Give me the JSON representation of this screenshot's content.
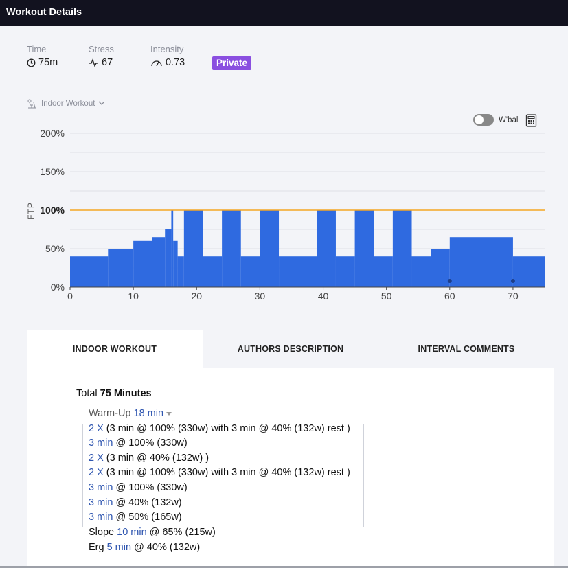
{
  "header": {
    "title": "Workout Details"
  },
  "metrics": {
    "time": {
      "label": "Time",
      "value": "75m"
    },
    "stress": {
      "label": "Stress",
      "value": "67"
    },
    "intensity": {
      "label": "Intensity",
      "value": "0.73"
    },
    "badge": "Private"
  },
  "workout_type": "Indoor Workout",
  "wbal_label": "W'bal",
  "chart_data": {
    "type": "area",
    "ylabel": "FTP",
    "xlim": [
      0,
      75
    ],
    "ylim": [
      0,
      200
    ],
    "x_ticks": [
      0,
      10,
      20,
      30,
      40,
      50,
      60,
      70
    ],
    "x_tick_labels": [
      "0",
      "10",
      "20",
      "30",
      "40",
      "50",
      "60",
      "70"
    ],
    "y_ticks": [
      0,
      50,
      100,
      150,
      200
    ],
    "y_tick_labels": [
      "0%",
      "50%",
      "100%",
      "150%",
      "200%"
    ],
    "reference_line": {
      "value": 100,
      "color": "#f5a623"
    },
    "bar_color": "#2f6ae0",
    "segments": [
      {
        "start": 0,
        "end": 6,
        "value": 40
      },
      {
        "start": 6,
        "end": 10,
        "value": 50
      },
      {
        "start": 10,
        "end": 13,
        "value": 60
      },
      {
        "start": 13,
        "end": 15,
        "value": 65
      },
      {
        "start": 15,
        "end": 16,
        "value": 75
      },
      {
        "start": 16,
        "end": 16.3,
        "value": 100
      },
      {
        "start": 16.3,
        "end": 17,
        "value": 60
      },
      {
        "start": 17,
        "end": 18,
        "value": 40
      },
      {
        "start": 18,
        "end": 21,
        "value": 100
      },
      {
        "start": 21,
        "end": 24,
        "value": 40
      },
      {
        "start": 24,
        "end": 27,
        "value": 100
      },
      {
        "start": 27,
        "end": 30,
        "value": 40
      },
      {
        "start": 30,
        "end": 33,
        "value": 100
      },
      {
        "start": 33,
        "end": 39,
        "value": 40
      },
      {
        "start": 39,
        "end": 42,
        "value": 100
      },
      {
        "start": 42,
        "end": 45,
        "value": 40
      },
      {
        "start": 45,
        "end": 48,
        "value": 100
      },
      {
        "start": 48,
        "end": 51,
        "value": 40
      },
      {
        "start": 51,
        "end": 54,
        "value": 100
      },
      {
        "start": 54,
        "end": 57,
        "value": 40
      },
      {
        "start": 57,
        "end": 60,
        "value": 50
      },
      {
        "start": 60,
        "end": 70,
        "value": 65
      },
      {
        "start": 70,
        "end": 75,
        "value": 40
      }
    ],
    "markers": [
      60,
      70
    ]
  },
  "tabs": [
    {
      "label": "INDOOR WORKOUT",
      "active": true
    },
    {
      "label": "AUTHORS DESCRIPTION",
      "active": false
    },
    {
      "label": "INTERVAL COMMENTS",
      "active": false
    }
  ],
  "total": {
    "prefix": "Total",
    "value": "75 Minutes"
  },
  "warmup": {
    "label": "Warm-Up",
    "duration": "18 min"
  },
  "steps": [
    {
      "dur": "2 X",
      "text": " (3 min @ 100% (330w) with 3 min @ 40% (132w) rest )"
    },
    {
      "dur": "3 min",
      "text": " @ 100% (330w)"
    },
    {
      "dur": "2 X",
      "text": " (3 min @ 40% (132w) )"
    },
    {
      "dur": "2 X",
      "text": " (3 min @ 100% (330w) with 3 min @ 40% (132w) rest )"
    },
    {
      "dur": "3 min",
      "text": " @ 100% (330w)"
    },
    {
      "dur": "3 min",
      "text": " @ 40% (132w)"
    },
    {
      "dur": "3 min",
      "text": " @ 50% (165w)"
    }
  ],
  "tail_steps": [
    {
      "pre": "Slope ",
      "dur": "10 min",
      "text": " @ 65% (215w)"
    },
    {
      "pre": "Erg ",
      "dur": "5 min",
      "text": " @ 40% (132w)"
    }
  ]
}
